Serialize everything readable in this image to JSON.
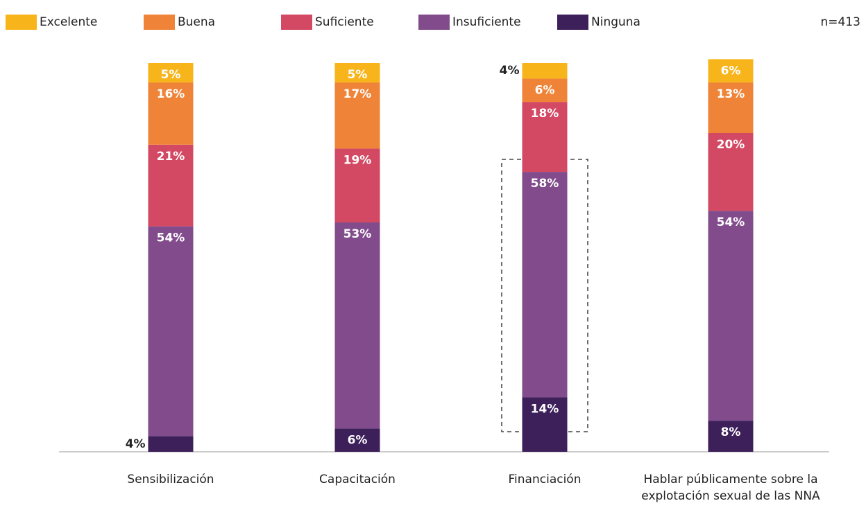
{
  "chart_data": {
    "type": "stacked_bar",
    "note": "n=413",
    "categories": [
      "Sensibilización",
      "Capacitación",
      "Financiación",
      "Hablar públicamente sobre la explotación sexual de las NNA"
    ],
    "series": [
      {
        "name": "Excelente",
        "color": "#f8b51b",
        "values": [
          5,
          5,
          4,
          6
        ],
        "value_labels": [
          "5%",
          "5%",
          "4%",
          "6%"
        ]
      },
      {
        "name": "Buena",
        "color": "#ef8337",
        "values": [
          16,
          17,
          6,
          13
        ],
        "value_labels": [
          "16%",
          "17%",
          "6%",
          "13%"
        ]
      },
      {
        "name": "Suficiente",
        "color": "#d34862",
        "values": [
          21,
          19,
          18,
          20
        ],
        "value_labels": [
          "21%",
          "19%",
          "18%",
          "20%"
        ]
      },
      {
        "name": "Insuficiente",
        "color": "#824c8c",
        "values": [
          54,
          53,
          58,
          54
        ],
        "value_labels": [
          "54%",
          "53%",
          "58%",
          "54%"
        ]
      },
      {
        "name": "Ninguna",
        "color": "#3d1f5a",
        "values": [
          4,
          6,
          14,
          8
        ],
        "value_labels": [
          "4%",
          "6%",
          "14%",
          "8%"
        ]
      }
    ]
  }
}
